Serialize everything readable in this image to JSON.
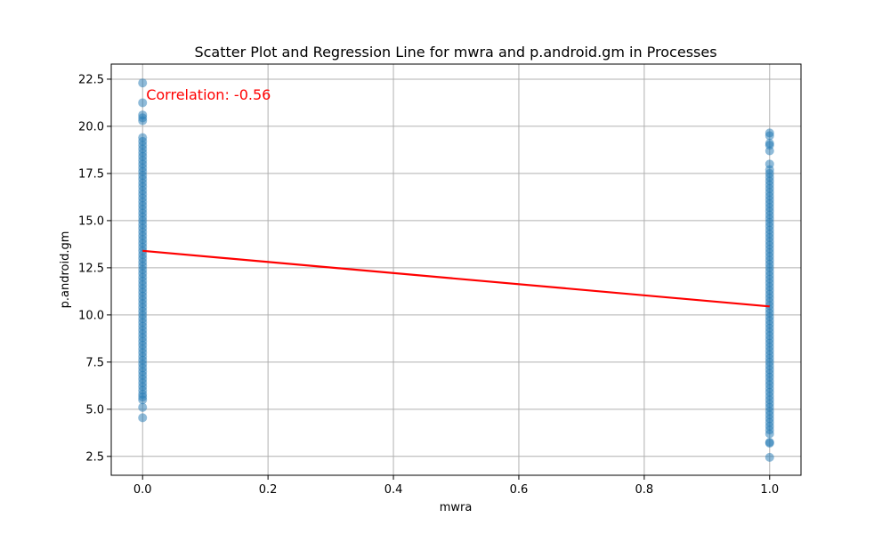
{
  "chart_data": {
    "type": "scatter",
    "title": "Scatter Plot and Regression Line for mwra and p.android.gm in Processes",
    "xlabel": "mwra",
    "ylabel": "p.android.gm",
    "xlim": [
      -0.05,
      1.05
    ],
    "ylim": [
      1.5,
      23.3
    ],
    "xticks": [
      0.0,
      0.2,
      0.4,
      0.6,
      0.8,
      1.0
    ],
    "xtick_labels": [
      "0.0",
      "0.2",
      "0.4",
      "0.6",
      "0.8",
      "1.0"
    ],
    "yticks": [
      2.5,
      5.0,
      7.5,
      10.0,
      12.5,
      15.0,
      17.5,
      20.0,
      22.5
    ],
    "ytick_labels": [
      "2.5",
      "5.0",
      "7.5",
      "10.0",
      "12.5",
      "15.0",
      "17.5",
      "20.0",
      "22.5"
    ],
    "grid": true,
    "point_color": "#1f77b4",
    "regression_color": "#ff0000",
    "annotation": {
      "text": "Correlation: -0.56",
      "color": "#ff0000",
      "x": 0.0,
      "y": 21.7
    },
    "regression_line": {
      "x": [
        0.0,
        1.0
      ],
      "y": [
        13.4,
        10.45
      ]
    },
    "series": [
      {
        "x_value": 0.0,
        "y_values": [
          4.55,
          5.1,
          5.5,
          5.65,
          5.8,
          6.0,
          6.2,
          6.4,
          6.6,
          6.8,
          7.0,
          7.2,
          7.4,
          7.6,
          7.8,
          8.0,
          8.2,
          8.4,
          8.6,
          8.8,
          9.0,
          9.2,
          9.4,
          9.6,
          9.8,
          10.0,
          10.2,
          10.4,
          10.6,
          10.8,
          11.0,
          11.2,
          11.4,
          11.6,
          11.8,
          12.0,
          12.2,
          12.4,
          12.6,
          12.8,
          13.0,
          13.2,
          13.4,
          13.6,
          13.8,
          14.0,
          14.2,
          14.4,
          14.6,
          14.8,
          15.0,
          15.2,
          15.4,
          15.6,
          15.8,
          16.0,
          16.2,
          16.4,
          16.6,
          16.8,
          17.0,
          17.2,
          17.4,
          17.6,
          17.8,
          18.0,
          18.2,
          18.4,
          18.6,
          18.8,
          19.0,
          19.2,
          19.4,
          20.3,
          20.45,
          20.6,
          21.25,
          22.3
        ]
      },
      {
        "x_value": 1.0,
        "y_values": [
          2.45,
          3.2,
          3.25,
          3.7,
          3.9,
          4.1,
          4.3,
          4.5,
          4.7,
          4.9,
          5.1,
          5.3,
          5.5,
          5.7,
          5.9,
          6.1,
          6.3,
          6.5,
          6.7,
          6.9,
          7.1,
          7.3,
          7.5,
          7.7,
          7.9,
          8.1,
          8.3,
          8.5,
          8.7,
          8.9,
          9.1,
          9.3,
          9.5,
          9.7,
          9.9,
          10.1,
          10.3,
          10.5,
          10.7,
          10.9,
          11.1,
          11.3,
          11.5,
          11.7,
          11.9,
          12.1,
          12.3,
          12.5,
          12.7,
          12.9,
          13.1,
          13.3,
          13.5,
          13.7,
          13.9,
          14.1,
          14.3,
          14.5,
          14.7,
          14.9,
          15.1,
          15.3,
          15.5,
          15.7,
          15.9,
          16.1,
          16.3,
          16.5,
          16.7,
          16.9,
          17.1,
          17.3,
          17.5,
          17.7,
          18.0,
          18.7,
          19.0,
          19.1,
          19.5,
          19.65
        ]
      }
    ]
  }
}
